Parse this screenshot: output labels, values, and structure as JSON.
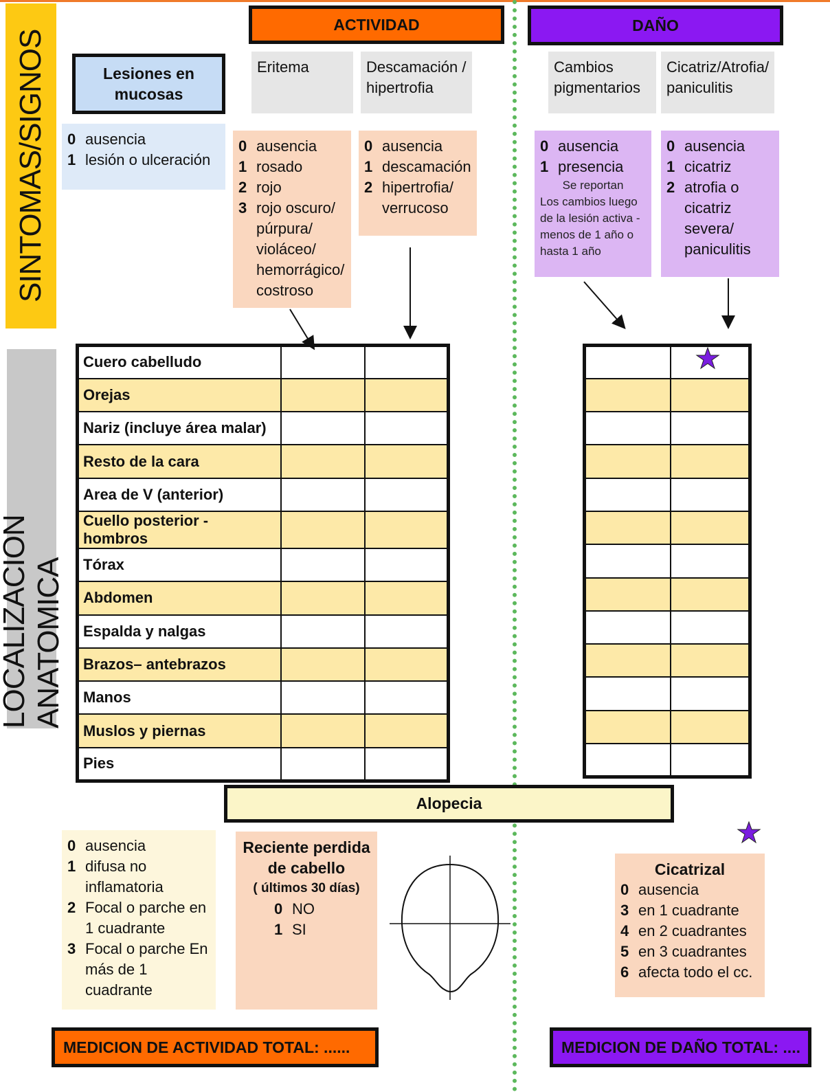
{
  "side_labels": {
    "symptoms": "SINTOMAS/SIGNOS",
    "location": "LOCALIZACION ANATOMICA"
  },
  "activity": {
    "title": "ACTIVIDAD"
  },
  "damage": {
    "title": "DAÑO"
  },
  "mucosa": {
    "title": "Lesiones en mucosas",
    "scale": [
      {
        "code": "0",
        "text": "ausencia"
      },
      {
        "code": "1",
        "text": "lesión o ulceración"
      }
    ]
  },
  "columns": [
    {
      "header": "Eritema",
      "scale": [
        {
          "code": "0",
          "text": "ausencia"
        },
        {
          "code": "1",
          "text": "rosado"
        },
        {
          "code": "2",
          "text": "rojo"
        },
        {
          "code": "3",
          "text": "rojo oscuro/ púrpura/ violáceo/ hemorrágico/ costroso"
        }
      ]
    },
    {
      "header": "Descamación / hipertrofia",
      "scale": [
        {
          "code": "0",
          "text": "ausencia"
        },
        {
          "code": "1",
          "text": "descamación"
        },
        {
          "code": "2",
          "text": "hipertrofia/ verrucoso"
        }
      ]
    },
    {
      "header": "Cambios pigmentarios",
      "scale": [
        {
          "code": "0",
          "text": "ausencia"
        },
        {
          "code": "1",
          "text": "presencia"
        }
      ],
      "note_title": "Se reportan",
      "note": "Los cambios luego de la lesión activa -menos de 1 año o hasta 1 año"
    },
    {
      "header": "Cicatriz/Atrofia/ paniculitis",
      "scale": [
        {
          "code": "0",
          "text": "ausencia"
        },
        {
          "code": "1",
          "text": "cicatriz"
        },
        {
          "code": "2",
          "text": "atrofia o cicatriz severa/ paniculitis"
        }
      ]
    }
  ],
  "regions": [
    "Cuero cabelludo",
    "Orejas",
    "Nariz (incluye área malar)",
    "Resto de la cara",
    "Area de V (anterior)",
    "Cuello posterior - hombros",
    "Tórax",
    "Abdomen",
    "Espalda y nalgas",
    "Brazos– antebrazos",
    "Manos",
    "Muslos y piernas",
    "Pies"
  ],
  "alopecia": {
    "title": "Alopecia",
    "scale": [
      {
        "code": "0",
        "text": "ausencia"
      },
      {
        "code": "1",
        "text": "difusa no inflamatoria"
      },
      {
        "code": "2",
        "text": "Focal o parche en 1 cuadrante"
      },
      {
        "code": "3",
        "text": "Focal o parche En más de 1 cuadrante"
      }
    ],
    "recent": {
      "title": "Reciente perdida de cabello",
      "subtitle": "( últimos 30 días)",
      "options": [
        {
          "code": "0",
          "text": "NO"
        },
        {
          "code": "1",
          "text": "SI"
        }
      ]
    },
    "scarring": {
      "title": "Cicatrizal",
      "options": [
        {
          "code": "0",
          "text": "ausencia"
        },
        {
          "code": "3",
          "text": "en 1 cuadrante"
        },
        {
          "code": "4",
          "text": "en 2 cuadrantes"
        },
        {
          "code": "5",
          "text": "en 3 cuadrantes"
        },
        {
          "code": "6",
          "text": "afecta todo el cc."
        }
      ]
    }
  },
  "totals": {
    "activity": "MEDICION  DE ACTIVIDAD TOTAL:  ......",
    "damage": "MEDICION DE DAÑO TOTAL:  ...."
  }
}
